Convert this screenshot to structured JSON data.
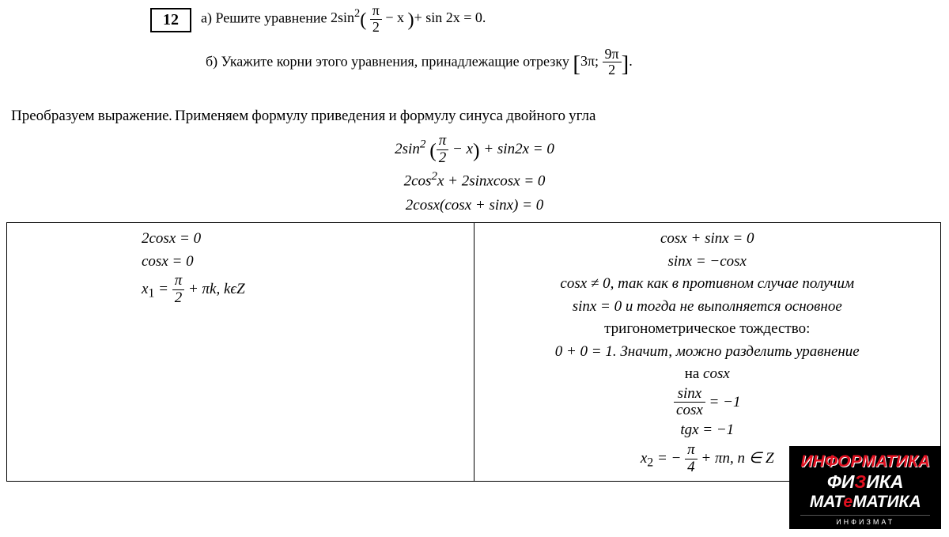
{
  "problem": {
    "number": "12",
    "part_a_label": "а)",
    "part_a_text_1": "Решите уравнение ",
    "part_a_eq_prefix": "2sin",
    "part_a_eq_frac_num": "π",
    "part_a_eq_frac_den": "2",
    "part_a_eq_mid": "− x",
    "part_a_eq_suffix": "+ sin 2x = 0.",
    "part_b_label": "б)",
    "part_b_text": "Укажите корни этого уравнения, принадлежащие отрезку ",
    "part_b_interval_left": "3π;",
    "part_b_interval_num": "9π",
    "part_b_interval_den": "2"
  },
  "intro": "Преобразуем выражение. Применяем формулу приведения и формулу синуса двойного угла",
  "center_math": {
    "line1_a": "2sin",
    "line1_sup": "2",
    "line1_frac_num": "π",
    "line1_frac_den": "2",
    "line1_b": " − x",
    "line1_c": " + sin2x = 0",
    "line2": "2cos",
    "line2_sup": "2",
    "line2_b": "x + 2sinxcosx = 0",
    "line3": "2cosx(cosx + sinx) = 0"
  },
  "left": {
    "l1": "2cosx = 0",
    "l2": "cosx = 0",
    "l3_a": "x",
    "l3_sub": "1",
    "l3_b": " = ",
    "l3_num": "π",
    "l3_den": "2",
    "l3_c": " + πk, kϵZ"
  },
  "right": {
    "r1": "cosx + sinx = 0",
    "r2": "sinx = −cosx",
    "r3": "cosx ≠ 0, так как в противном случае получим",
    "r4": "sinx = 0 и тогда не выполняется основное",
    "r5": "тригонометрическое тождество:",
    "r6": "0 + 0 = 1. Значит, можно разделить уравнение",
    "r7": "на cosx",
    "r8_num": "sinx",
    "r8_den": "cosx",
    "r8_eq": " = −1",
    "r9": "tgx = −1",
    "r10_a": "x",
    "r10_sub": "2",
    "r10_b": " = − ",
    "r10_num": "π",
    "r10_den": "4",
    "r10_c": " + πn, n ∈ Z"
  },
  "logo": {
    "line1": "ИНФОРМАТИКА",
    "line2_a": "ФИ",
    "line2_b": "З",
    "line2_c": "ИКА",
    "line3_a": "МАТ",
    "line3_b": "е",
    "line3_c": "МАТИКА",
    "sub": "ИНФИЗМАТ"
  },
  "style": {
    "bg": "#ffffff",
    "text": "#000000",
    "logo_bg": "#000000",
    "logo_red": "#e01020",
    "logo_white": "#ffffff"
  }
}
